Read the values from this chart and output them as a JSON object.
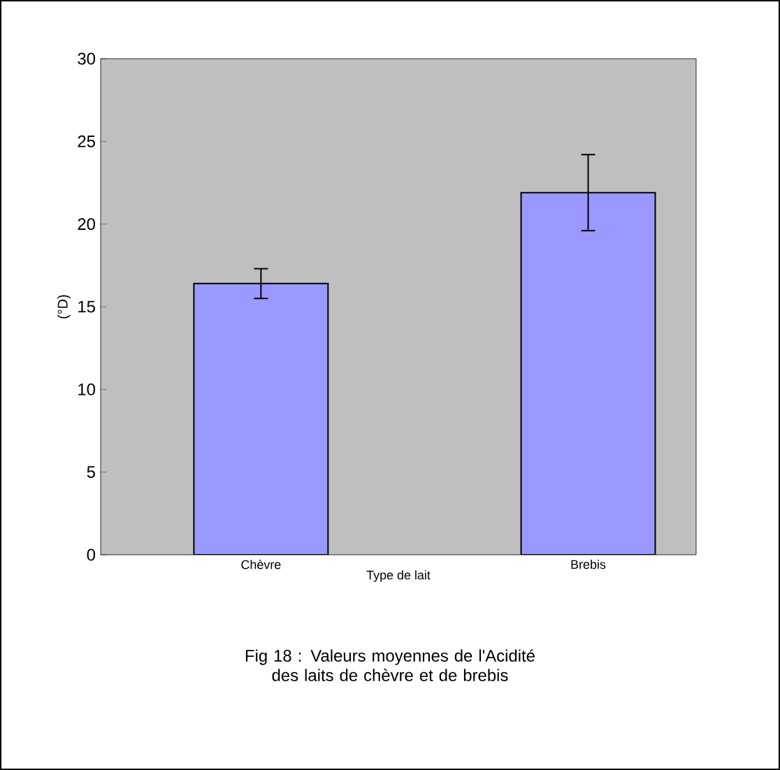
{
  "chart_data": {
    "type": "bar",
    "categories": [
      "Chèvre",
      "Brebis"
    ],
    "values": [
      16.4,
      21.9
    ],
    "errors": [
      0.9,
      2.3
    ],
    "color": "#9999ff",
    "xlabel": "Type de lait",
    "ylabel": "(°D)",
    "ylim": [
      0,
      30
    ],
    "yticks": [
      0,
      5,
      10,
      15,
      20,
      25,
      30
    ],
    "grid": false,
    "annotations": [
      "Fig 18 : Valeurs moyennes de l'Acidité des laits de chèvre et de brebis"
    ]
  }
}
